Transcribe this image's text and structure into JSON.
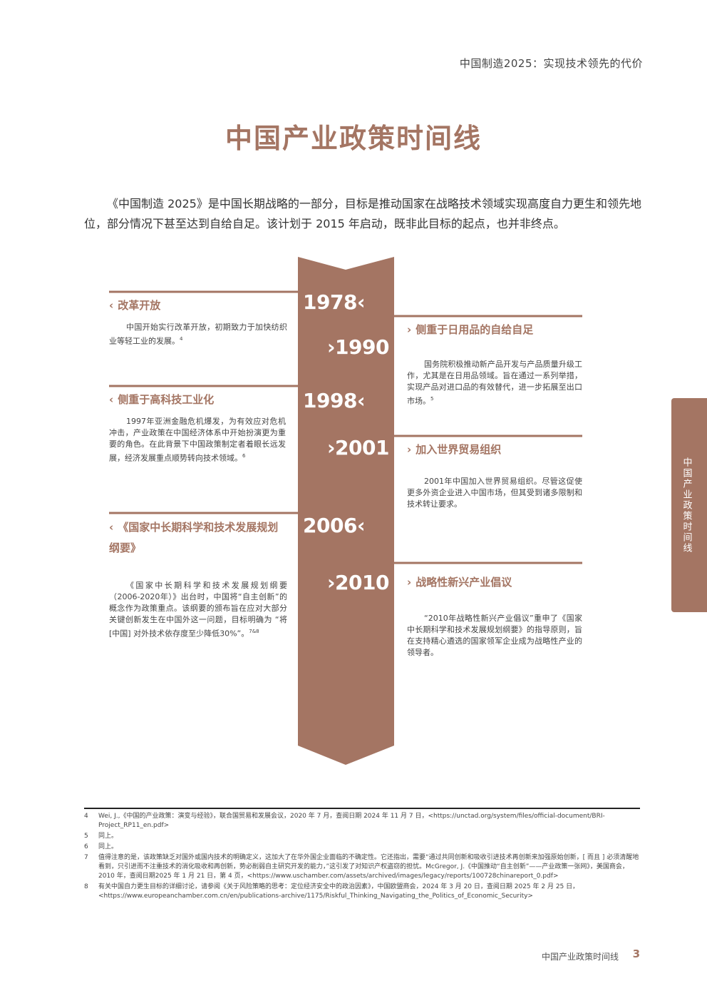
{
  "header": {
    "running_title": "中国制造2025：实现技术领先的代价"
  },
  "title": "中国产业政策时间线",
  "intro": "《中国制造 2025》是中国长期战略的一部分，目标是推动国家在战略技术领域实现高度自力更生和领先地位，部分情况下甚至达到自给自足。该计划于 2015 年启动，既非此目标的起点，也并非终点。",
  "colors": {
    "accent": "#a47563",
    "text": "#3a3a3a"
  },
  "timeline": {
    "left_events": [
      {
        "year": "1978",
        "title": "改革开放",
        "desc": "中国开始实行改革开放，初期致力于加快纺织业等轻工业的发展。",
        "ref": "4"
      },
      {
        "year": "1998",
        "title": "侧重于高科技工业化",
        "desc": "1997年亚洲金融危机爆发，为有效应对危机冲击，产业政策在中国经济体系中开始扮演更为重要的角色。在此背景下中国政策制定者着眼长远发展，经济发展重点顺势转向技术领域。",
        "ref": "6"
      },
      {
        "year": "2006",
        "title": "《国家中长期科学和技术发展规划纲要》",
        "desc": "《国家中长期科学和技术发展规划纲要（2006-2020年）》出台时，中国将“自主创新”的概念作为政策重点。该纲要的颁布旨在应对大部分关键创新发生在中国外这一问题，目标明确为 “将 [中国] 对外技术依存度至少降低30%”。",
        "ref": "7&8"
      }
    ],
    "right_events": [
      {
        "year": "1990",
        "title": "侧重于日用品的自给自足",
        "desc": "国务院积极推动新产品开发与产品质量升级工作，尤其是在日用品领域。旨在通过一系列举措，实现产品对进口品的有效替代，进一步拓展至出口市场。",
        "ref": "5"
      },
      {
        "year": "2001",
        "title": "加入世界贸易组织",
        "desc": "2001年中国加入世界贸易组织。尽管这促使更多外资企业进入中国市场，但其受到诸多限制和技术转让要求。",
        "ref": ""
      },
      {
        "year": "2010",
        "title": "战略性新兴产业倡议",
        "desc": "“2010年战略性新兴产业倡议”重申了《国家中长期科学和技术发展规划纲要》的指导原则，旨在支持精心遴选的国家领军企业成为战略性产业的领导者。",
        "ref": ""
      }
    ]
  },
  "footnotes": [
    {
      "num": "4",
      "text": "Wei, J.,《中国的产业政策：演变与经验》，联合国贸易和发展会议，2020 年 7 月，查阅日期 2024 年 11 月 7 日，<https://unctad.org/system/files/official-document/BRI-Project_RP11_en.pdf>"
    },
    {
      "num": "5",
      "text": "同上。"
    },
    {
      "num": "6",
      "text": "同上。"
    },
    {
      "num": "7",
      "text": "值得注意的是，该政策缺乏对国外或国内技术的明确定义，这加大了在华外国企业面临的不确定性。它还指出，需要“通过共同创新和吸收引进技术再创新来加强原始创新，[ 而且 ] 必须清醒地看到，只引进而不注重技术的消化吸收和再创新，势必削弱自主研究开发的能力，”这引发了对知识产权盗窃的担忧。McGregor, J.《中国推动“自主创新”——产业政策一张网》，美国商会，2010 年，查阅日期2025 年 1 月 21 日，第 4 页，<https://www.uschamber.com/assets/archived/images/legacy/reports/100728chinareport_0.pdf>"
    },
    {
      "num": "8",
      "text": "有关中国自力更生目标的详细讨论，请参阅《关于风险策略的思考：定位经济安全中的政治因素》，中国欧盟商会，2024 年 3 月 20 日，查阅日期 2025 年 2 月 25 日，<https://www.europeanchamber.com.cn/en/publications-archive/1175/Riskful_Thinking_Navigating_the_Politics_of_Economic_Security>"
    }
  ],
  "side_tab": "中国产业政策时间线",
  "footer": {
    "label": "中国产业政策时间线",
    "page_number": "3"
  }
}
